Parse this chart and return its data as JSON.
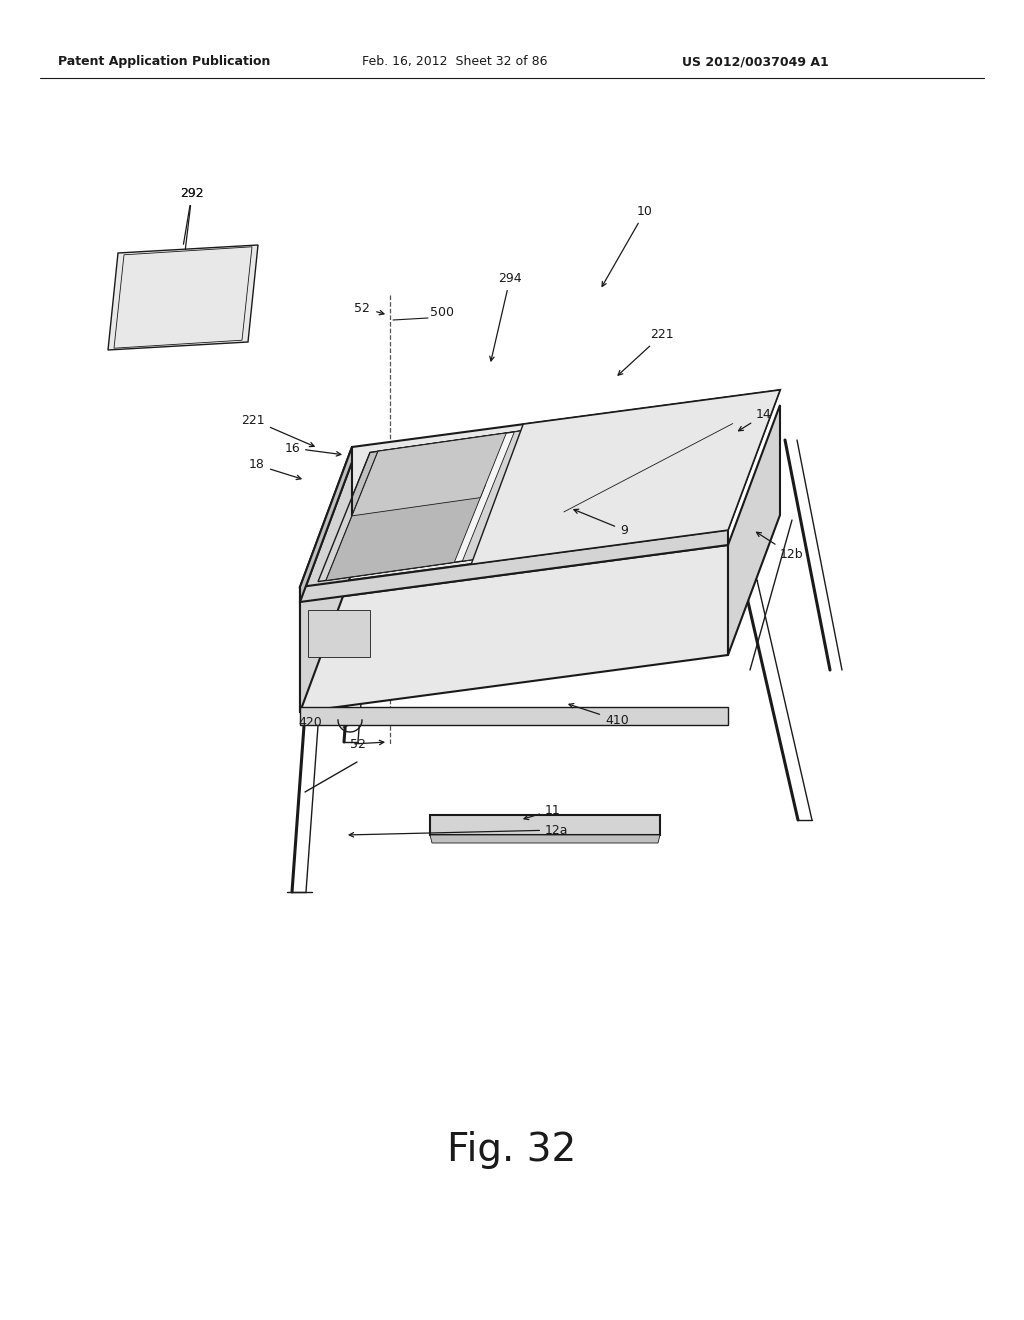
{
  "bg_color": "#ffffff",
  "line_color": "#1a1a1a",
  "fill_light": "#e8e8e8",
  "fill_mid": "#d4d4d4",
  "fill_dark": "#c0c0c0",
  "fill_white": "#f5f5f5",
  "header_left": "Patent Application Publication",
  "header_center": "Feb. 16, 2012  Sheet 32 of 86",
  "header_right": "US 2012/0037049 A1",
  "figure_label": "Fig. 32",
  "header_fontsize": 9,
  "fig_label_fontsize": 28,
  "label_fontsize": 9
}
